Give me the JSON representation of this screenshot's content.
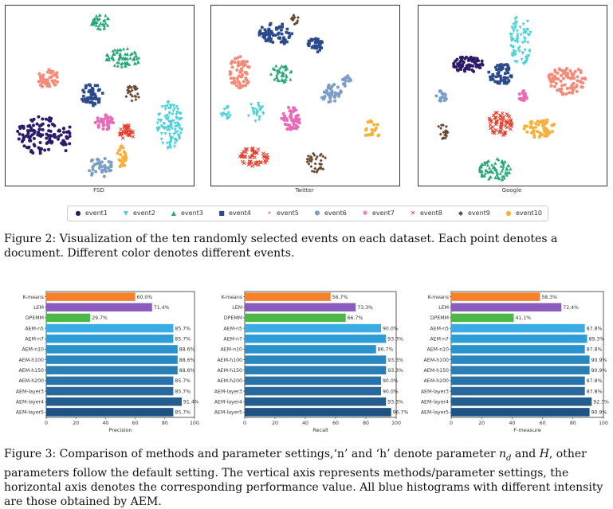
{
  "figure2": {
    "scatter_plots": [
      {
        "label": "FSD"
      },
      {
        "label": "Twitter"
      },
      {
        "label": "Google"
      }
    ],
    "legend": [
      {
        "name": "event1",
        "color": "#2d1b69",
        "marker": "●"
      },
      {
        "name": "event2",
        "color": "#4ad0d8",
        "marker": "▼"
      },
      {
        "name": "event3",
        "color": "#28a87a",
        "marker": "▲"
      },
      {
        "name": "event4",
        "color": "#2a4a8c",
        "marker": "■"
      },
      {
        "name": "event5",
        "color": "#f58a78",
        "marker": "✦"
      },
      {
        "name": "event6",
        "color": "#7a9ec8",
        "marker": "⬢"
      },
      {
        "name": "event7",
        "color": "#e86ab8",
        "marker": "✱"
      },
      {
        "name": "event8",
        "color": "#e83a28",
        "marker": "✕"
      },
      {
        "name": "event9",
        "color": "#6b4a32",
        "marker": "◆"
      },
      {
        "name": "event10",
        "color": "#f7b13a",
        "marker": "●"
      }
    ],
    "caption": "Figure 2:  Visualization of the ten randomly selected events on each dataset.  Each point denotes a document. Different color denotes different events."
  },
  "chart_data": [
    {
      "type": "bar",
      "orientation": "horizontal",
      "categories": [
        "K-means",
        "LEM",
        "DPEMM",
        "AEM-n5",
        "AEM-n7",
        "AEM-n10",
        "AEM-h100",
        "AEM-h150",
        "AEM-h200",
        "AEM-layer3",
        "AEM-layer4",
        "AEM-layer5"
      ],
      "values": [
        60.0,
        71.4,
        29.7,
        85.7,
        85.7,
        88.6,
        88.6,
        88.6,
        85.7,
        85.7,
        91.4,
        85.7
      ],
      "value_labels": [
        "60.0%",
        "71.4%",
        "29.7%",
        "85.7%",
        "85.7%",
        "88.6%",
        "88.6%",
        "88.6%",
        "85.7%",
        "85.7%",
        "91.4%",
        "85.7%"
      ],
      "colors": [
        "#f5822a",
        "#8a5cc0",
        "#4db848",
        "#3aace4",
        "#2e9ed8",
        "#2a93cc",
        "#2a88c0",
        "#2a7eb4",
        "#2a73a8",
        "#28689c",
        "#245d90",
        "#1f5284"
      ],
      "xlabel": "Precision",
      "xlim": [
        0,
        100
      ],
      "xticks": [
        "0",
        "20",
        "40",
        "60",
        "80",
        "100"
      ]
    },
    {
      "type": "bar",
      "orientation": "horizontal",
      "categories": [
        "K-means",
        "LEM",
        "DPEMM",
        "AEM-n5",
        "AEM-n7",
        "AEM-n10",
        "AEM-h100",
        "AEM-h150",
        "AEM-h200",
        "AEM-layer3",
        "AEM-layer4",
        "AEM-layer5"
      ],
      "values": [
        56.7,
        73.3,
        66.7,
        90.0,
        93.3,
        86.7,
        93.3,
        93.3,
        90.0,
        90.0,
        93.3,
        96.7
      ],
      "value_labels": [
        "56.7%",
        "73.3%",
        "66.7%",
        "90.0%",
        "93.3%",
        "86.7%",
        "93.3%",
        "93.3%",
        "90.0%",
        "90.0%",
        "93.3%",
        "96.7%"
      ],
      "colors": [
        "#f5822a",
        "#8a5cc0",
        "#4db848",
        "#3aace4",
        "#2e9ed8",
        "#2a93cc",
        "#2a88c0",
        "#2a7eb4",
        "#2a73a8",
        "#28689c",
        "#245d90",
        "#1f5284"
      ],
      "xlabel": "Recall",
      "xlim": [
        0,
        100
      ],
      "xticks": [
        "0",
        "20",
        "40",
        "60",
        "80",
        "100"
      ]
    },
    {
      "type": "bar",
      "orientation": "horizontal",
      "categories": [
        "K-means",
        "LEM",
        "DPEMM",
        "AEM-n5",
        "AEM-n7",
        "AEM-n10",
        "AEM-h100",
        "AEM-h150",
        "AEM-h200",
        "AEM-layer3",
        "AEM-layer4",
        "AEM-layer5"
      ],
      "values": [
        58.3,
        72.4,
        41.1,
        87.8,
        89.3,
        87.8,
        90.9,
        90.9,
        87.8,
        87.8,
        92.3,
        90.9
      ],
      "value_labels": [
        "58.3%",
        "72.4%",
        "41.1%",
        "87.8%",
        "89.3%",
        "87.8%",
        "90.9%",
        "90.9%",
        "87.8%",
        "87.8%",
        "92.3%",
        "90.9%"
      ],
      "colors": [
        "#f5822a",
        "#8a5cc0",
        "#4db848",
        "#3aace4",
        "#2e9ed8",
        "#2a93cc",
        "#2a88c0",
        "#2a7eb4",
        "#2a73a8",
        "#28689c",
        "#245d90",
        "#1f5284"
      ],
      "xlabel": "F-measure",
      "xlim": [
        0,
        100
      ],
      "xticks": [
        "0",
        "20",
        "40",
        "60",
        "80",
        "100"
      ]
    }
  ],
  "figure3": {
    "caption_parts": {
      "a": "Figure 3: Comparison of methods and parameter settings,‘n’ and ‘h’ denote parameter ",
      "nd": "n",
      "nd_sub": "d",
      "b": " and ",
      "h": "H",
      "c": ", other parameters follow the default setting. The vertical axis represents methods/parameter settings, the horizontal axis denotes the corresponding performance value. All blue histograms with different intensity are those obtained by AEM."
    }
  }
}
